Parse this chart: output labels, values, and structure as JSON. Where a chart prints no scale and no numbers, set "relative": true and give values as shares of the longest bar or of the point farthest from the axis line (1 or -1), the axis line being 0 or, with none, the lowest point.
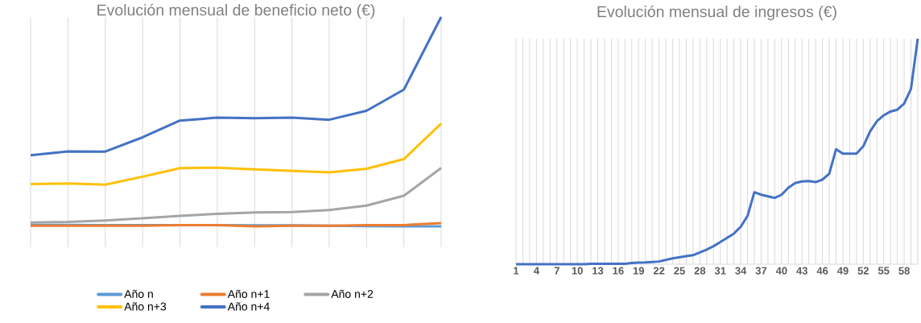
{
  "chart_data": [
    {
      "type": "line",
      "title": "Evolución mensual de beneficio neto (€)",
      "relative": true,
      "grid": "x",
      "legend": "bottom",
      "tick_labels": false,
      "categories": [
        null,
        null,
        null,
        null,
        null,
        null,
        null,
        null,
        null,
        null,
        null,
        null
      ],
      "series": [
        {
          "name": "Año n",
          "color": "#5b9bd5",
          "values": [
            0.007,
            0.007,
            0.006,
            0.006,
            null,
            null,
            0.005,
            0.005,
            null,
            0.001,
            0.0,
            0.0
          ]
        },
        {
          "name": "Año n+1",
          "color": "#ed7d31",
          "values": [
            0.003,
            0.003,
            0.003,
            0.003,
            0.006,
            0.006,
            0.0,
            0.003,
            0.003,
            0.006,
            0.006,
            0.015
          ]
        },
        {
          "name": "Año n+2",
          "color": "#a5a5a5",
          "values": [
            0.018,
            0.021,
            0.028,
            0.038,
            0.05,
            0.06,
            0.066,
            0.068,
            0.078,
            0.099,
            0.146,
            0.279
          ]
        },
        {
          "name": "Año n+3",
          "color": "#ffc000",
          "values": [
            0.202,
            0.205,
            0.199,
            0.237,
            0.278,
            0.28,
            0.272,
            0.265,
            0.258,
            0.275,
            0.321,
            0.491
          ]
        },
        {
          "name": "Año n+4",
          "color": "#4472c4",
          "values": [
            0.339,
            0.358,
            0.357,
            0.425,
            0.505,
            0.519,
            0.516,
            0.519,
            0.509,
            0.552,
            0.653,
            1
          ]
        }
      ]
    },
    {
      "type": "line",
      "title": "Evolución mensual de ingresos (€)",
      "relative": true,
      "grid": "x",
      "tick_labels": "x",
      "color": "#4472c4",
      "categories": [
        "1",
        null,
        null,
        "4",
        null,
        null,
        "7",
        null,
        null,
        "10",
        null,
        null,
        "13",
        null,
        null,
        "16",
        null,
        null,
        "19",
        null,
        null,
        "22",
        null,
        null,
        "25",
        null,
        null,
        "28",
        null,
        null,
        "31",
        null,
        null,
        "34",
        null,
        null,
        "37",
        null,
        null,
        "40",
        null,
        null,
        "43",
        null,
        null,
        "46",
        null,
        null,
        "49",
        null,
        null,
        "52",
        null,
        null,
        "55",
        null,
        null,
        "58",
        null,
        null
      ],
      "values": [
        0,
        0,
        0,
        0,
        0,
        0,
        0,
        0,
        0,
        0,
        0,
        0.002,
        0.002,
        0.002,
        0.002,
        0.002,
        0.002,
        0.005,
        0.007,
        0.008,
        0.01,
        0.012,
        0.019,
        0.026,
        0.031,
        0.036,
        0.04,
        0.052,
        0.065,
        0.08,
        0.098,
        0.117,
        0.136,
        0.166,
        0.214,
        0.319,
        0.308,
        0.301,
        0.294,
        0.308,
        0.339,
        0.36,
        0.367,
        0.369,
        0.364,
        0.375,
        0.401,
        0.51,
        0.49,
        0.49,
        0.49,
        0.523,
        0.589,
        0.634,
        0.66,
        0.677,
        0.685,
        0.712,
        0.777,
        1
      ]
    }
  ]
}
